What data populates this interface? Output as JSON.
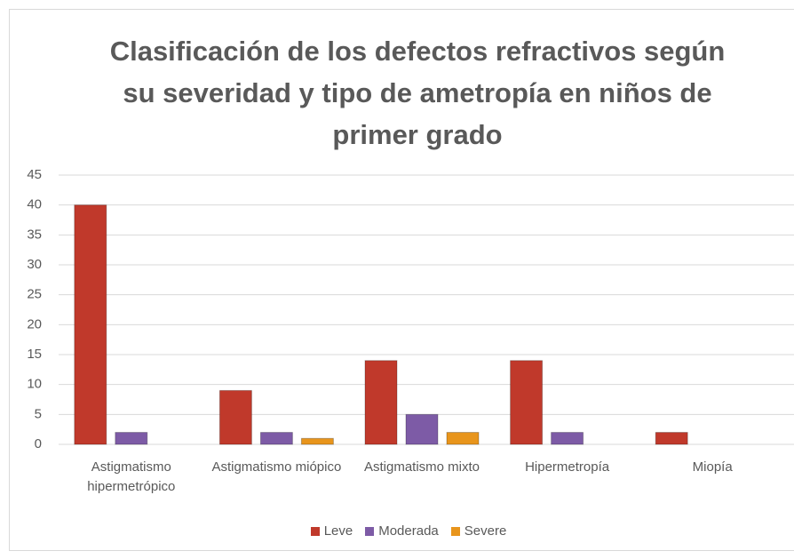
{
  "chart_data": {
    "type": "bar",
    "title": "Clasificación de los defectos refractivos según su severidad y tipo de ametropía en niños de primer grado",
    "categories": [
      "Astigmatismo hipermetrópico",
      "Astigmatismo miópico",
      "Astigmatismo mixto",
      "Hipermetropía",
      "Miopía"
    ],
    "series": [
      {
        "name": "Leve",
        "color": "#c0392b",
        "values": [
          40,
          9,
          14,
          14,
          2
        ]
      },
      {
        "name": "Moderada",
        "color": "#7d5ba6",
        "values": [
          2,
          2,
          5,
          2,
          0
        ]
      },
      {
        "name": "Severe",
        "color": "#e8951c",
        "values": [
          0,
          1,
          2,
          0,
          0
        ]
      }
    ],
    "ylim": [
      0,
      45
    ],
    "yticks": [
      0,
      5,
      10,
      15,
      20,
      25,
      30,
      35,
      40,
      45
    ],
    "grid": true,
    "legend": "bottom"
  }
}
